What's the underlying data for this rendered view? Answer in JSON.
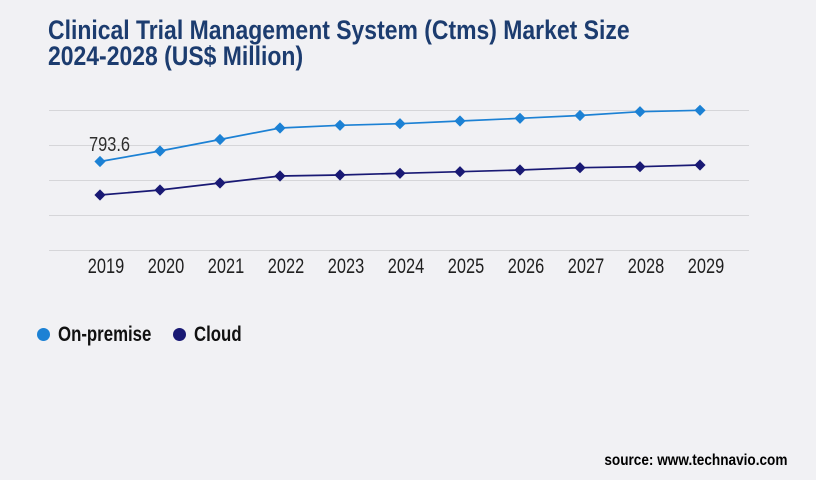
{
  "chart_data": {
    "type": "line",
    "title": "Clinical Trial Management System (Ctms) Market Size 2024-2028 (US$ Million)",
    "title_lines": [
      "Clinical Trial Management System (Ctms) Market Size",
      "2024-2028 (US$ Million)"
    ],
    "categories": [
      "2019",
      "2020",
      "2021",
      "2022",
      "2023",
      "2024",
      "2025",
      "2026",
      "2027",
      "2028",
      "2029"
    ],
    "series": [
      {
        "name": "On-premise",
        "color": "#1c81d4",
        "marker": "diamond",
        "values": [
          793.6,
          853.6,
          919.3,
          985.0,
          1000.5,
          1009.6,
          1025.1,
          1040.5,
          1056.5,
          1078.2,
          1086.2
        ]
      },
      {
        "name": "Cloud",
        "color": "#191974",
        "marker": "diamond",
        "values": [
          602.2,
          630.7,
          670.7,
          710.7,
          716.5,
          726.2,
          735.3,
          745.0,
          758.2,
          763.9,
          773.6
        ]
      }
    ],
    "data_labels": [
      {
        "series": "On-premise",
        "category": "2019",
        "text": "793.6"
      }
    ],
    "xlabel": "",
    "ylabel": "",
    "ylim": [
      285,
      1085
    ],
    "grid": "horizontal-only, 5 lines, no y-axis tick labels",
    "legend_position": "bottom-left",
    "source": "source: www.technavio.com",
    "colors": {
      "background": "#f1f1f4",
      "gridline": "#d6d6d9",
      "title": "#1c3c6f",
      "axis_text": "#1f1f1f",
      "data_label_text": "#2e2e2e",
      "legend_text": "#111111",
      "source_text": "#000000"
    }
  }
}
